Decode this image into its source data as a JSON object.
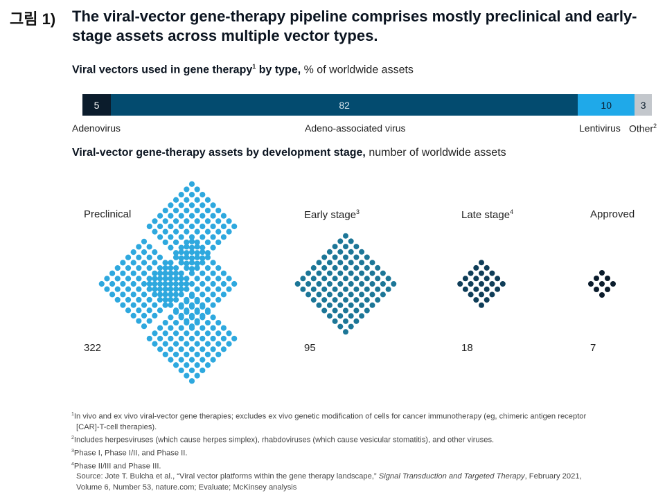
{
  "figure_label": "그림 1)",
  "title": "The viral-vector gene-therapy pipeline comprises mostly preclinical and early-stage assets across multiple vector types.",
  "chart_data": [
    {
      "type": "bar",
      "orientation": "horizontal-stacked",
      "title_bold": "Viral vectors used in gene therapy",
      "title_sup": "1",
      "title_rest": " by type,",
      "unit": " % of worldwide assets",
      "categories": [
        "Adenovirus",
        "Adeno-associated virus",
        "Lentivirus",
        "Other"
      ],
      "category_sups": [
        "",
        "",
        "",
        "2"
      ],
      "values": [
        5,
        82,
        10,
        3
      ],
      "colors": [
        "#0b1c2c",
        "#034b6f",
        "#1fa9e9",
        "#c3c7cc"
      ],
      "value_colors": [
        "#ffffff",
        "#d8e6ee",
        "#0b1c2c",
        "#0b1c2c"
      ]
    },
    {
      "type": "dot-pictogram",
      "title_bold": "Viral-vector gene-therapy assets by development stage,",
      "unit": " number of worldwide assets",
      "categories": [
        "Preclinical",
        "Early stage",
        "Late stage",
        "Approved"
      ],
      "category_sups": [
        "",
        "3",
        "4",
        ""
      ],
      "values": [
        322,
        95,
        18,
        7
      ],
      "colors": [
        "#2ea8de",
        "#1c7697",
        "#0f3d58",
        "#0b1c2c"
      ]
    }
  ],
  "footnotes": {
    "n1a": "In vivo and ex vivo viral-vector gene therapies; excludes ex vivo genetic modification of cells for cancer immunotherapy (eg, chimeric antigen receptor",
    "n1b": "[CAR]-T-cell therapies).",
    "n2": "Includes herpesviruses (which cause herpes simplex), rhabdoviruses (which cause vesicular stomatitis), and other viruses.",
    "n3": "Phase I, Phase I/II, and Phase II.",
    "n4": "Phase II/III and Phase III.",
    "source_a": "Source: Jote T. Bulcha et al., “Viral vector platforms within the gene therapy landscape,”",
    "source_journal": "Signal Transduction and Targeted Therapy",
    "source_b": ", February 2021,",
    "source_c": "Volume 6, Number 53, nature.com; Evaluate; McKinsey analysis"
  }
}
